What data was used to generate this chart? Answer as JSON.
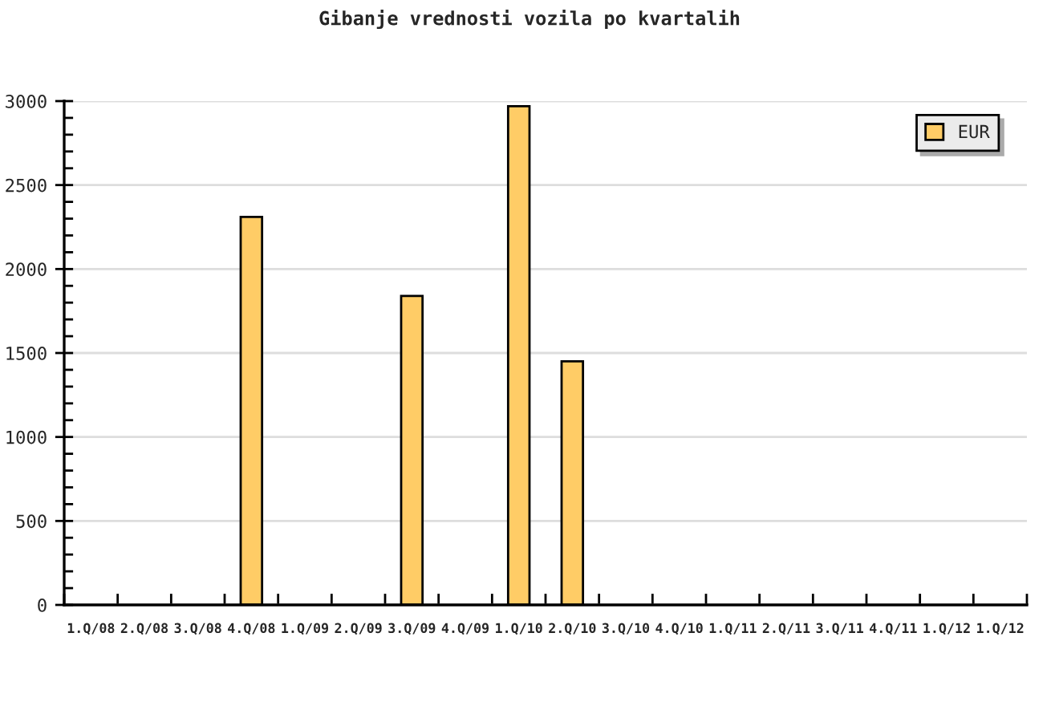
{
  "chart_data": {
    "type": "bar",
    "title": "Gibanje vrednosti vozila po kvartalih",
    "categories": [
      "1.Q/08",
      "2.Q/08",
      "3.Q/08",
      "4.Q/08",
      "1.Q/09",
      "2.Q/09",
      "3.Q/09",
      "4.Q/09",
      "1.Q/10",
      "2.Q/10",
      "3.Q/10",
      "4.Q/10",
      "1.Q/11",
      "2.Q/11",
      "3.Q/11",
      "4.Q/11",
      "1.Q/12",
      "1.Q/12"
    ],
    "series": [
      {
        "name": "EUR",
        "color": "#ffcc66",
        "values": [
          null,
          null,
          null,
          2310,
          null,
          null,
          1840,
          null,
          2970,
          1450,
          null,
          null,
          null,
          null,
          null,
          null,
          null,
          null
        ]
      }
    ],
    "ylim": [
      0,
      3000
    ],
    "yticks": [
      0,
      {
        "value": 100,
        "label": null
      },
      {
        "value": 200,
        "label": null
      },
      {
        "value": 300,
        "label": null
      },
      {
        "value": 400,
        "label": null
      },
      500,
      {
        "value": 600,
        "label": null
      },
      {
        "value": 700,
        "label": null
      },
      {
        "value": 800,
        "label": null
      },
      {
        "value": 900,
        "label": null
      },
      1000,
      {
        "value": 1100,
        "label": null
      },
      {
        "value": 1200,
        "label": null
      },
      {
        "value": 1300,
        "label": null
      },
      {
        "value": 1400,
        "label": null
      },
      1500,
      {
        "value": 1600,
        "label": null
      },
      {
        "value": 1700,
        "label": null
      },
      {
        "value": 1800,
        "label": null
      },
      {
        "value": 1900,
        "label": null
      },
      2000,
      {
        "value": 2100,
        "label": null
      },
      {
        "value": 2200,
        "label": null
      },
      {
        "value": 2300,
        "label": null
      },
      {
        "value": 2400,
        "label": null
      },
      2500,
      {
        "value": 2600,
        "label": null
      },
      {
        "value": 2700,
        "label": null
      },
      {
        "value": 2800,
        "label": null
      },
      {
        "value": 2900,
        "label": null
      },
      3000
    ],
    "grid": "y",
    "legend": "top right"
  }
}
